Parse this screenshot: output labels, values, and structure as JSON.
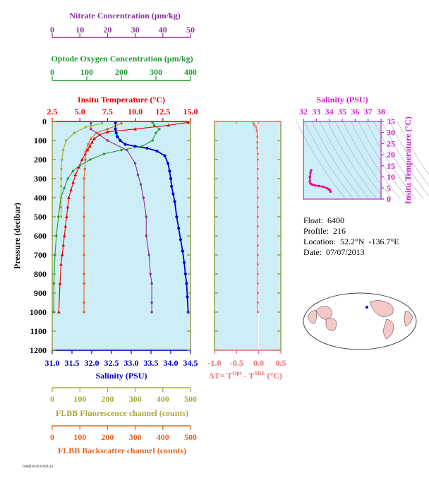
{
  "colors": {
    "temperature": "#e60000",
    "salinity": "#0000cc",
    "oxygen": "#229933",
    "nitrate": "#883399",
    "fluorescence": "#a8a83a",
    "backscatter": "#dd6622",
    "delta": "#f07070",
    "ts": "#e0158c",
    "panel_bg": "#cdeef6",
    "olive_axis": "#8a8a20"
  },
  "axes": {
    "nitrate": {
      "label": "Nitrate Concentration (µm/kg)",
      "ticks": [
        "0",
        "10",
        "20",
        "30",
        "40",
        "50"
      ]
    },
    "oxygen": {
      "label": "Optode Oxygen Concentration (µm/kg)",
      "ticks": [
        "0",
        "100",
        "200",
        "300",
        "400"
      ]
    },
    "temperature": {
      "label": "Insitu Temperature (°C)",
      "ticks": [
        "2.5",
        "5.0",
        "7.5",
        "10.0",
        "12.5",
        "15.0"
      ]
    },
    "pressure": {
      "label": "Pressure (decibar)",
      "ticks": [
        "0",
        "100",
        "200",
        "300",
        "400",
        "500",
        "600",
        "700",
        "800",
        "900",
        "1000",
        "1100",
        "1200"
      ]
    },
    "salinity": {
      "label": "Salinity (PSU)",
      "ticks": [
        "31.0",
        "31.5",
        "32.0",
        "32.5",
        "33.0",
        "33.5",
        "34.0",
        "34.5"
      ]
    },
    "fluorescence": {
      "label": "FLBB Fluorescence channel (counts)",
      "ticks": [
        "0",
        "100",
        "200",
        "300",
        "400",
        "500"
      ]
    },
    "backscatter": {
      "label": "FLBB Backscatter channel (counts)",
      "ticks": [
        "0",
        "100",
        "200",
        "300",
        "400",
        "500"
      ]
    },
    "delta": {
      "label_main": "ΔT= T",
      "label_sup1": "Opt",
      "label_mid": " - T",
      "label_sup2": "SBE",
      "label_end": " (°C)",
      "ticks": [
        "-1.0",
        "-0.5",
        "0.0",
        "0.5"
      ]
    },
    "ts_salinity": {
      "label": "Salinity (PSU)",
      "ticks": [
        "32",
        "33",
        "34",
        "35",
        "36",
        "37",
        "38"
      ]
    },
    "ts_temperature": {
      "label": "Insitu Temperature (°C)",
      "ticks": [
        "0",
        "5",
        "10",
        "15",
        "20",
        "25",
        "30",
        "35"
      ]
    }
  },
  "info": {
    "float": "Float:  6400",
    "profile": "Profile:  216",
    "location": "Location:  52.2°N  -136.7°E",
    "date": "Date:  07/07/2013"
  },
  "footnote": "F6400 P216 07/07/13",
  "chart_data": [
    {
      "type": "line",
      "title": "",
      "ylabel": "Pressure (decibar)",
      "ylim": [
        1200,
        0
      ],
      "series": [
        {
          "name": "Insitu Temperature (°C)",
          "xlim": [
            2.5,
            15.0
          ],
          "x": [
            14.8,
            13.0,
            10.0,
            7.5,
            6.8,
            6.3,
            6.1,
            5.9,
            5.7,
            5.5,
            5.2,
            4.9,
            4.6,
            4.4,
            4.2,
            4.0,
            3.9,
            3.8,
            3.7,
            3.6,
            3.5,
            3.4,
            3.3,
            3.2,
            3.1
          ],
          "y": [
            5,
            20,
            40,
            55,
            70,
            90,
            110,
            130,
            150,
            170,
            200,
            240,
            280,
            320,
            360,
            400,
            450,
            500,
            550,
            600,
            650,
            700,
            750,
            850,
            1000
          ]
        },
        {
          "name": "Salinity (PSU)",
          "xlim": [
            31.0,
            34.5
          ],
          "x": [
            32.6,
            32.6,
            32.62,
            32.65,
            32.72,
            32.85,
            33.1,
            33.4,
            33.65,
            33.85,
            33.93,
            33.97,
            34.0,
            34.02,
            34.06,
            34.1,
            34.15,
            34.2,
            34.25,
            34.3,
            34.34,
            34.37,
            34.4,
            34.42,
            34.44
          ],
          "y": [
            5,
            40,
            60,
            80,
            100,
            120,
            130,
            140,
            155,
            180,
            220,
            260,
            300,
            340,
            380,
            420,
            500,
            560,
            620,
            680,
            740,
            800,
            850,
            920,
            1000
          ]
        },
        {
          "name": "Optode Oxygen Concentration (µm/kg)",
          "xlim": [
            0,
            400
          ],
          "x": [
            290,
            295,
            310,
            300,
            290,
            260,
            200,
            150,
            110,
            80,
            60,
            45,
            35,
            25,
            18,
            12,
            8,
            5,
            4
          ],
          "y": [
            5,
            20,
            40,
            60,
            100,
            130,
            150,
            170,
            200,
            230,
            260,
            300,
            350,
            400,
            500,
            600,
            700,
            850,
            1000
          ]
        },
        {
          "name": "Nitrate Concentration (µm/kg)",
          "xlim": [
            0,
            50
          ],
          "x": [
            14,
            14,
            16,
            20,
            27,
            30,
            31,
            32,
            33,
            34,
            34,
            35,
            35.5,
            36,
            36,
            36
          ],
          "y": [
            10,
            40,
            60,
            100,
            150,
            220,
            280,
            330,
            400,
            500,
            600,
            700,
            800,
            850,
            950,
            1000
          ]
        },
        {
          "name": "FLBB Fluorescence channel (counts)",
          "xlim": [
            0,
            500
          ],
          "x": [
            180,
            120,
            80,
            50,
            40,
            35,
            33,
            32,
            32,
            32,
            32,
            32
          ],
          "y": [
            10,
            30,
            60,
            100,
            150,
            200,
            250,
            300,
            340,
            400,
            450,
            500
          ]
        },
        {
          "name": "FLBB Backscatter channel (counts)",
          "xlim": [
            0,
            500
          ],
          "x": [
            250,
            200,
            160,
            140,
            130,
            120,
            120,
            118,
            115,
            115,
            115,
            115,
            115,
            115,
            115,
            115,
            115
          ],
          "y": [
            10,
            40,
            60,
            90,
            120,
            160,
            200,
            250,
            300,
            400,
            500,
            600,
            700,
            800,
            850,
            950,
            1000
          ]
        }
      ]
    },
    {
      "type": "line",
      "xlabel": "ΔT= TOpt - TSBE (°C)",
      "xlim": [
        -1.0,
        0.5
      ],
      "ylim": [
        1200,
        0
      ],
      "series": [
        {
          "name": "ΔT",
          "x": [
            -0.12,
            -0.1,
            -0.06,
            -0.04,
            -0.03,
            -0.03,
            -0.03,
            -0.02,
            -0.02,
            -0.02,
            -0.02,
            -0.02,
            -0.02,
            -0.02,
            -0.02,
            -0.02,
            -0.02,
            -0.02,
            -0.02,
            -0.02,
            -0.02,
            -0.02,
            -0.02,
            -0.02,
            -0.02
          ],
          "y": [
            10,
            20,
            30,
            50,
            80,
            110,
            140,
            170,
            200,
            250,
            300,
            350,
            400,
            450,
            500,
            550,
            600,
            650,
            700,
            750,
            800,
            850,
            900,
            950,
            1000
          ]
        }
      ]
    },
    {
      "type": "scatter",
      "xlabel": "Salinity (PSU)",
      "ylabel": "Insitu Temperature (°C)",
      "xlim": [
        32,
        38
      ],
      "ylim": [
        0,
        35
      ],
      "series": [
        {
          "name": "T-S",
          "x": [
            32.6,
            32.55,
            32.5,
            32.5,
            32.55,
            32.7,
            32.9,
            33.2,
            33.5,
            33.8,
            33.95,
            34.05,
            34.1
          ],
          "y": [
            13,
            12,
            10,
            8,
            7,
            6.5,
            6.2,
            5.9,
            5.6,
            5.0,
            4.5,
            4.0,
            3.4
          ]
        }
      ]
    }
  ]
}
